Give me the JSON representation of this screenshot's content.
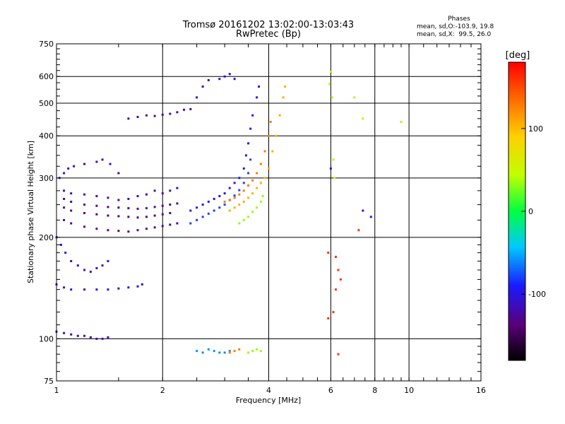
{
  "header": {
    "title_line1": "Tromsø 20161202 13:02:00-13:03:43",
    "title_line2": "RwPretec (Bp)"
  },
  "phases_box": {
    "heading": "Phases",
    "line_o": "mean, sd,O:-103.9, 19.8",
    "line_x": "mean, sd,X:  99.5, 26.0"
  },
  "chart_data": {
    "type": "scatter",
    "xlabel": "Frequency [MHz]",
    "ylabel": "Stationary phase Virtual Height [km]",
    "xscale": "log",
    "yscale": "log",
    "xlim": [
      1,
      16
    ],
    "ylim": [
      75,
      750
    ],
    "xticks": [
      1,
      2,
      4,
      6,
      8,
      10,
      16
    ],
    "yticks": [
      75,
      100,
      200,
      300,
      400,
      500,
      600,
      750
    ],
    "grid": true,
    "colorbar": {
      "label": "[deg]",
      "range": [
        -180,
        180
      ],
      "ticks": [
        100,
        0,
        -100
      ]
    },
    "series": [
      {
        "points": [
          [
            1.02,
            300
          ],
          [
            1.05,
            310
          ],
          [
            1.08,
            320
          ],
          [
            1.12,
            325
          ],
          [
            1.2,
            330
          ],
          [
            1.3,
            335
          ],
          [
            1.35,
            340
          ],
          [
            1.42,
            330
          ],
          [
            1.5,
            310
          ]
        ],
        "phase": -110
      },
      {
        "points": [
          [
            1.05,
            275
          ],
          [
            1.1,
            270
          ],
          [
            1.2,
            268
          ],
          [
            1.3,
            265
          ],
          [
            1.4,
            262
          ],
          [
            1.5,
            258
          ],
          [
            1.6,
            260
          ],
          [
            1.7,
            265
          ],
          [
            1.8,
            268
          ],
          [
            1.9,
            275
          ],
          [
            2.0,
            270
          ],
          [
            2.1,
            275
          ],
          [
            2.2,
            280
          ]
        ],
        "phase": -115
      },
      {
        "points": [
          [
            1.05,
            260
          ],
          [
            1.1,
            255
          ],
          [
            1.2,
            250
          ],
          [
            1.3,
            248
          ],
          [
            1.4,
            246
          ],
          [
            1.5,
            245
          ],
          [
            1.6,
            244
          ],
          [
            1.7,
            243
          ],
          [
            1.8,
            244
          ],
          [
            1.9,
            246
          ],
          [
            2.0,
            248
          ],
          [
            2.1,
            250
          ],
          [
            2.2,
            252
          ]
        ],
        "phase": -125
      },
      {
        "points": [
          [
            1.05,
            245
          ],
          [
            1.1,
            240
          ],
          [
            1.2,
            236
          ],
          [
            1.3,
            234
          ],
          [
            1.4,
            232
          ],
          [
            1.5,
            231
          ],
          [
            1.6,
            230
          ],
          [
            1.7,
            229
          ],
          [
            1.8,
            230
          ],
          [
            1.9,
            232
          ],
          [
            2.0,
            234
          ],
          [
            2.1,
            236
          ]
        ],
        "phase": -130
      },
      {
        "points": [
          [
            1.05,
            225
          ],
          [
            1.1,
            220
          ],
          [
            1.2,
            215
          ],
          [
            1.3,
            212
          ],
          [
            1.4,
            210
          ],
          [
            1.5,
            209
          ],
          [
            1.6,
            208
          ],
          [
            1.7,
            210
          ],
          [
            1.8,
            212
          ],
          [
            1.9,
            214
          ],
          [
            2.0,
            216
          ],
          [
            2.1,
            218
          ],
          [
            2.2,
            220
          ]
        ],
        "phase": -125
      },
      {
        "points": [
          [
            1.0,
            200
          ],
          [
            1.03,
            190
          ],
          [
            1.06,
            180
          ],
          [
            1.1,
            170
          ],
          [
            1.15,
            165
          ],
          [
            1.2,
            160
          ],
          [
            1.25,
            158
          ],
          [
            1.3,
            162
          ],
          [
            1.35,
            165
          ],
          [
            1.4,
            170
          ]
        ],
        "phase": -105
      },
      {
        "points": [
          [
            1.0,
            145
          ],
          [
            1.05,
            142
          ],
          [
            1.1,
            140
          ],
          [
            1.2,
            140
          ],
          [
            1.3,
            140
          ],
          [
            1.4,
            140
          ],
          [
            1.5,
            141
          ],
          [
            1.6,
            142
          ],
          [
            1.7,
            143
          ],
          [
            1.75,
            145
          ]
        ],
        "phase": -100
      },
      {
        "points": [
          [
            1.0,
            105
          ],
          [
            1.05,
            104
          ],
          [
            1.1,
            103
          ],
          [
            1.15,
            102
          ],
          [
            1.2,
            102
          ],
          [
            1.25,
            101
          ],
          [
            1.3,
            100
          ],
          [
            1.35,
            100
          ],
          [
            1.4,
            101
          ]
        ],
        "phase": -115
      },
      {
        "points": [
          [
            1.6,
            450
          ],
          [
            1.7,
            455
          ],
          [
            1.8,
            460
          ],
          [
            1.9,
            458
          ],
          [
            2.0,
            462
          ],
          [
            2.1,
            465
          ],
          [
            2.2,
            470
          ],
          [
            2.3,
            478
          ]
        ],
        "phase": -120
      },
      {
        "points": [
          [
            2.4,
            480
          ],
          [
            2.5,
            520
          ],
          [
            2.6,
            560
          ],
          [
            2.7,
            585
          ],
          [
            2.9,
            590
          ],
          [
            3.0,
            600
          ],
          [
            3.1,
            610
          ],
          [
            3.2,
            590
          ]
        ],
        "phase": -110
      },
      {
        "points": [
          [
            2.4,
            240
          ],
          [
            2.5,
            245
          ],
          [
            2.6,
            250
          ],
          [
            2.7,
            255
          ],
          [
            2.8,
            260
          ],
          [
            2.9,
            265
          ],
          [
            3.0,
            270
          ],
          [
            3.1,
            280
          ],
          [
            3.2,
            290
          ],
          [
            3.3,
            300
          ],
          [
            3.4,
            320
          ],
          [
            3.45,
            350
          ],
          [
            3.5,
            380
          ],
          [
            3.55,
            420
          ],
          [
            3.6,
            460
          ],
          [
            3.7,
            520
          ],
          [
            3.75,
            560
          ]
        ],
        "phase": -95
      },
      {
        "points": [
          [
            2.4,
            220
          ],
          [
            2.5,
            225
          ],
          [
            2.6,
            230
          ],
          [
            2.7,
            235
          ],
          [
            2.8,
            240
          ],
          [
            2.9,
            245
          ],
          [
            3.0,
            250
          ],
          [
            3.1,
            258
          ],
          [
            3.2,
            266
          ],
          [
            3.3,
            276
          ],
          [
            3.4,
            290
          ],
          [
            3.5,
            310
          ],
          [
            3.55,
            340
          ]
        ],
        "phase": -80
      },
      {
        "points": [
          [
            3.1,
            240
          ],
          [
            3.2,
            245
          ],
          [
            3.3,
            250
          ],
          [
            3.4,
            255
          ],
          [
            3.5,
            262
          ],
          [
            3.6,
            270
          ],
          [
            3.7,
            280
          ],
          [
            3.8,
            290
          ],
          [
            3.9,
            300
          ],
          [
            4.0,
            320
          ],
          [
            4.1,
            360
          ],
          [
            4.2,
            400
          ],
          [
            4.3,
            460
          ],
          [
            4.4,
            520
          ],
          [
            4.45,
            560
          ]
        ],
        "phase": 105
      },
      {
        "points": [
          [
            3.0,
            255
          ],
          [
            3.1,
            258
          ],
          [
            3.2,
            262
          ],
          [
            3.3,
            268
          ],
          [
            3.4,
            275
          ],
          [
            3.5,
            285
          ],
          [
            3.6,
            295
          ],
          [
            3.7,
            310
          ],
          [
            3.8,
            330
          ],
          [
            3.9,
            360
          ],
          [
            4.0,
            400
          ],
          [
            4.05,
            440
          ]
        ],
        "phase": 130
      },
      {
        "points": [
          [
            3.3,
            220
          ],
          [
            3.4,
            225
          ],
          [
            3.5,
            230
          ],
          [
            3.6,
            238
          ],
          [
            3.7,
            245
          ],
          [
            3.8,
            255
          ],
          [
            3.85,
            265
          ]
        ],
        "phase": 35
      },
      {
        "points": [
          [
            2.5,
            92
          ],
          [
            2.6,
            91
          ],
          [
            2.7,
            93
          ],
          [
            2.8,
            92
          ],
          [
            2.9,
            91
          ],
          [
            3.0,
            91
          ],
          [
            3.1,
            92
          ]
        ],
        "phase": -60
      },
      {
        "points": [
          [
            3.1,
            91
          ],
          [
            3.2,
            92
          ],
          [
            3.3,
            93
          ]
        ],
        "phase": 130
      },
      {
        "points": [
          [
            3.5,
            91
          ],
          [
            3.6,
            92
          ],
          [
            3.7,
            93
          ],
          [
            3.8,
            92
          ]
        ],
        "phase": 35
      },
      {
        "points": [
          [
            6.0,
            620
          ],
          [
            6.05,
            520
          ],
          [
            5.95,
            570
          ],
          [
            6.1,
            340
          ],
          [
            6.15,
            300
          ],
          [
            7.0,
            520
          ],
          [
            7.4,
            450
          ],
          [
            9.5,
            440
          ]
        ],
        "phase": 40
      },
      {
        "points": [
          [
            6.0,
            320
          ],
          [
            7.4,
            240
          ],
          [
            7.8,
            230
          ]
        ],
        "phase": -100
      },
      {
        "points": [
          [
            5.9,
            180
          ],
          [
            6.2,
            175
          ],
          [
            6.3,
            160
          ],
          [
            6.4,
            150
          ],
          [
            6.2,
            140
          ],
          [
            6.1,
            120
          ],
          [
            6.3,
            90
          ],
          [
            7.2,
            210
          ],
          [
            5.9,
            115
          ]
        ],
        "phase": 160
      }
    ]
  }
}
